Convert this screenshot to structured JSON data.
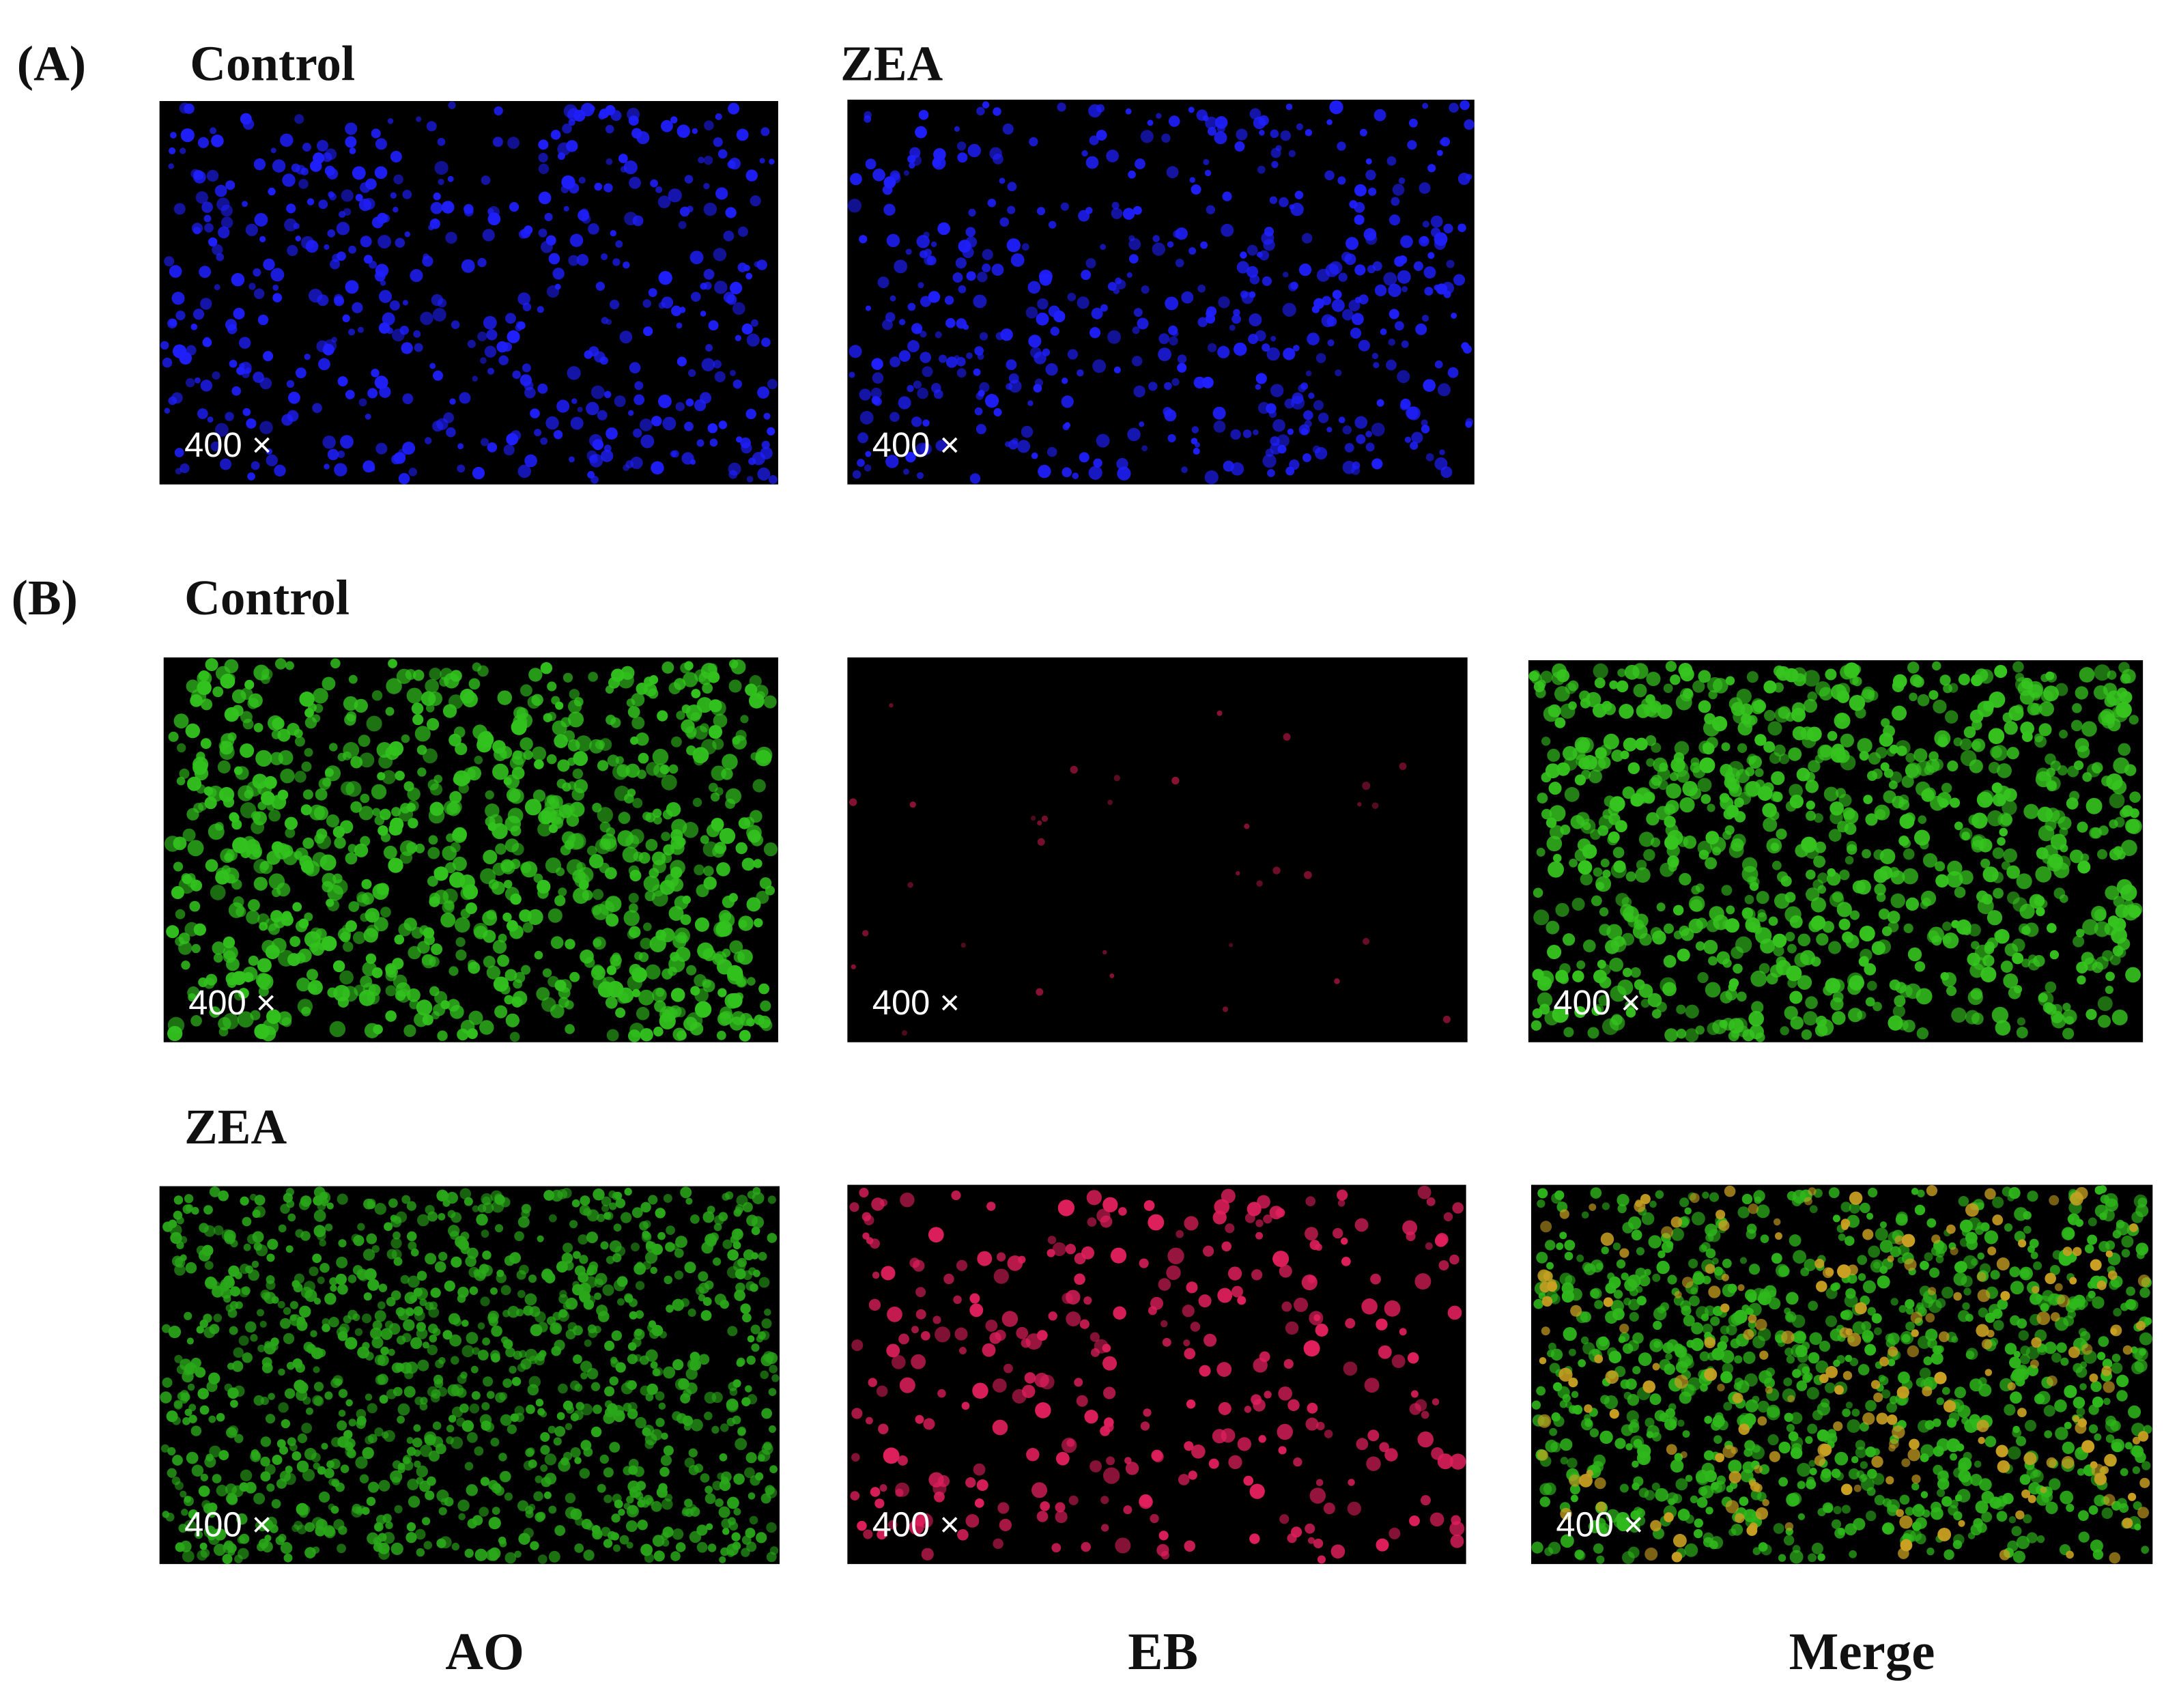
{
  "panel_a": {
    "label": "(A)",
    "images": [
      {
        "title": "Control",
        "magnification": "400 ×"
      },
      {
        "title": "ZEA",
        "magnification": "400 ×"
      }
    ]
  },
  "panel_b": {
    "label": "(B)",
    "rows": [
      {
        "title": "Control",
        "magnifications": [
          "400 ×",
          "400 ×",
          "400 ×"
        ]
      },
      {
        "title": "ZEA",
        "magnifications": [
          "400 ×",
          "400 ×",
          "400 ×"
        ]
      }
    ],
    "columns": [
      "AO",
      "EB",
      "Merge"
    ]
  }
}
